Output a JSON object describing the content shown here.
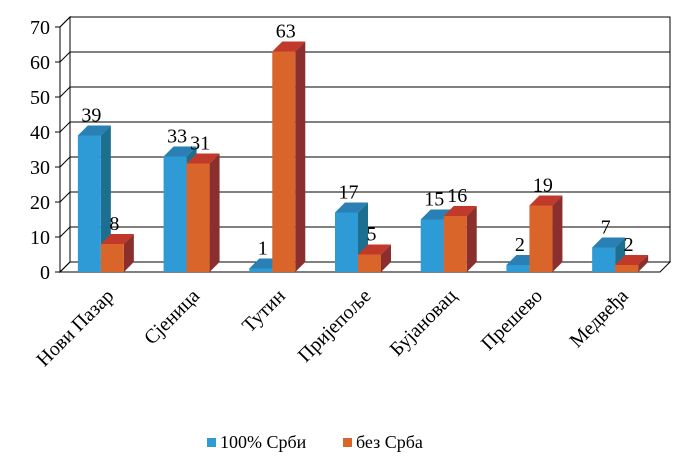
{
  "chart_data": {
    "type": "bar",
    "title": "",
    "xlabel": "",
    "ylabel": "",
    "ylim": [
      0,
      70
    ],
    "ytick_step": 10,
    "grid": true,
    "three_d": true,
    "legend_position": "bottom",
    "categories": [
      "Нови Пазар",
      "Сјеница",
      "Тутин",
      "Пријепоље",
      "Бујановац",
      "Прешево",
      "Медвеђа"
    ],
    "series": [
      {
        "name": "100% Срби",
        "color": "#2e9bd6",
        "side_color": "#1d6f8f",
        "top_color": "#2a7fb4",
        "values": [
          39,
          33,
          1,
          17,
          15,
          2,
          7
        ]
      },
      {
        "name": "без Срба",
        "color": "#d9652b",
        "side_color": "#8a2e2e",
        "top_color": "#c0392b",
        "values": [
          8,
          31,
          63,
          5,
          16,
          19,
          2
        ]
      }
    ],
    "data_labels": [
      [
        "39",
        "33",
        "1",
        "17",
        "15",
        "2",
        "7"
      ],
      [
        "8",
        "31",
        "63",
        "5",
        "16",
        "19",
        "2"
      ]
    ]
  }
}
